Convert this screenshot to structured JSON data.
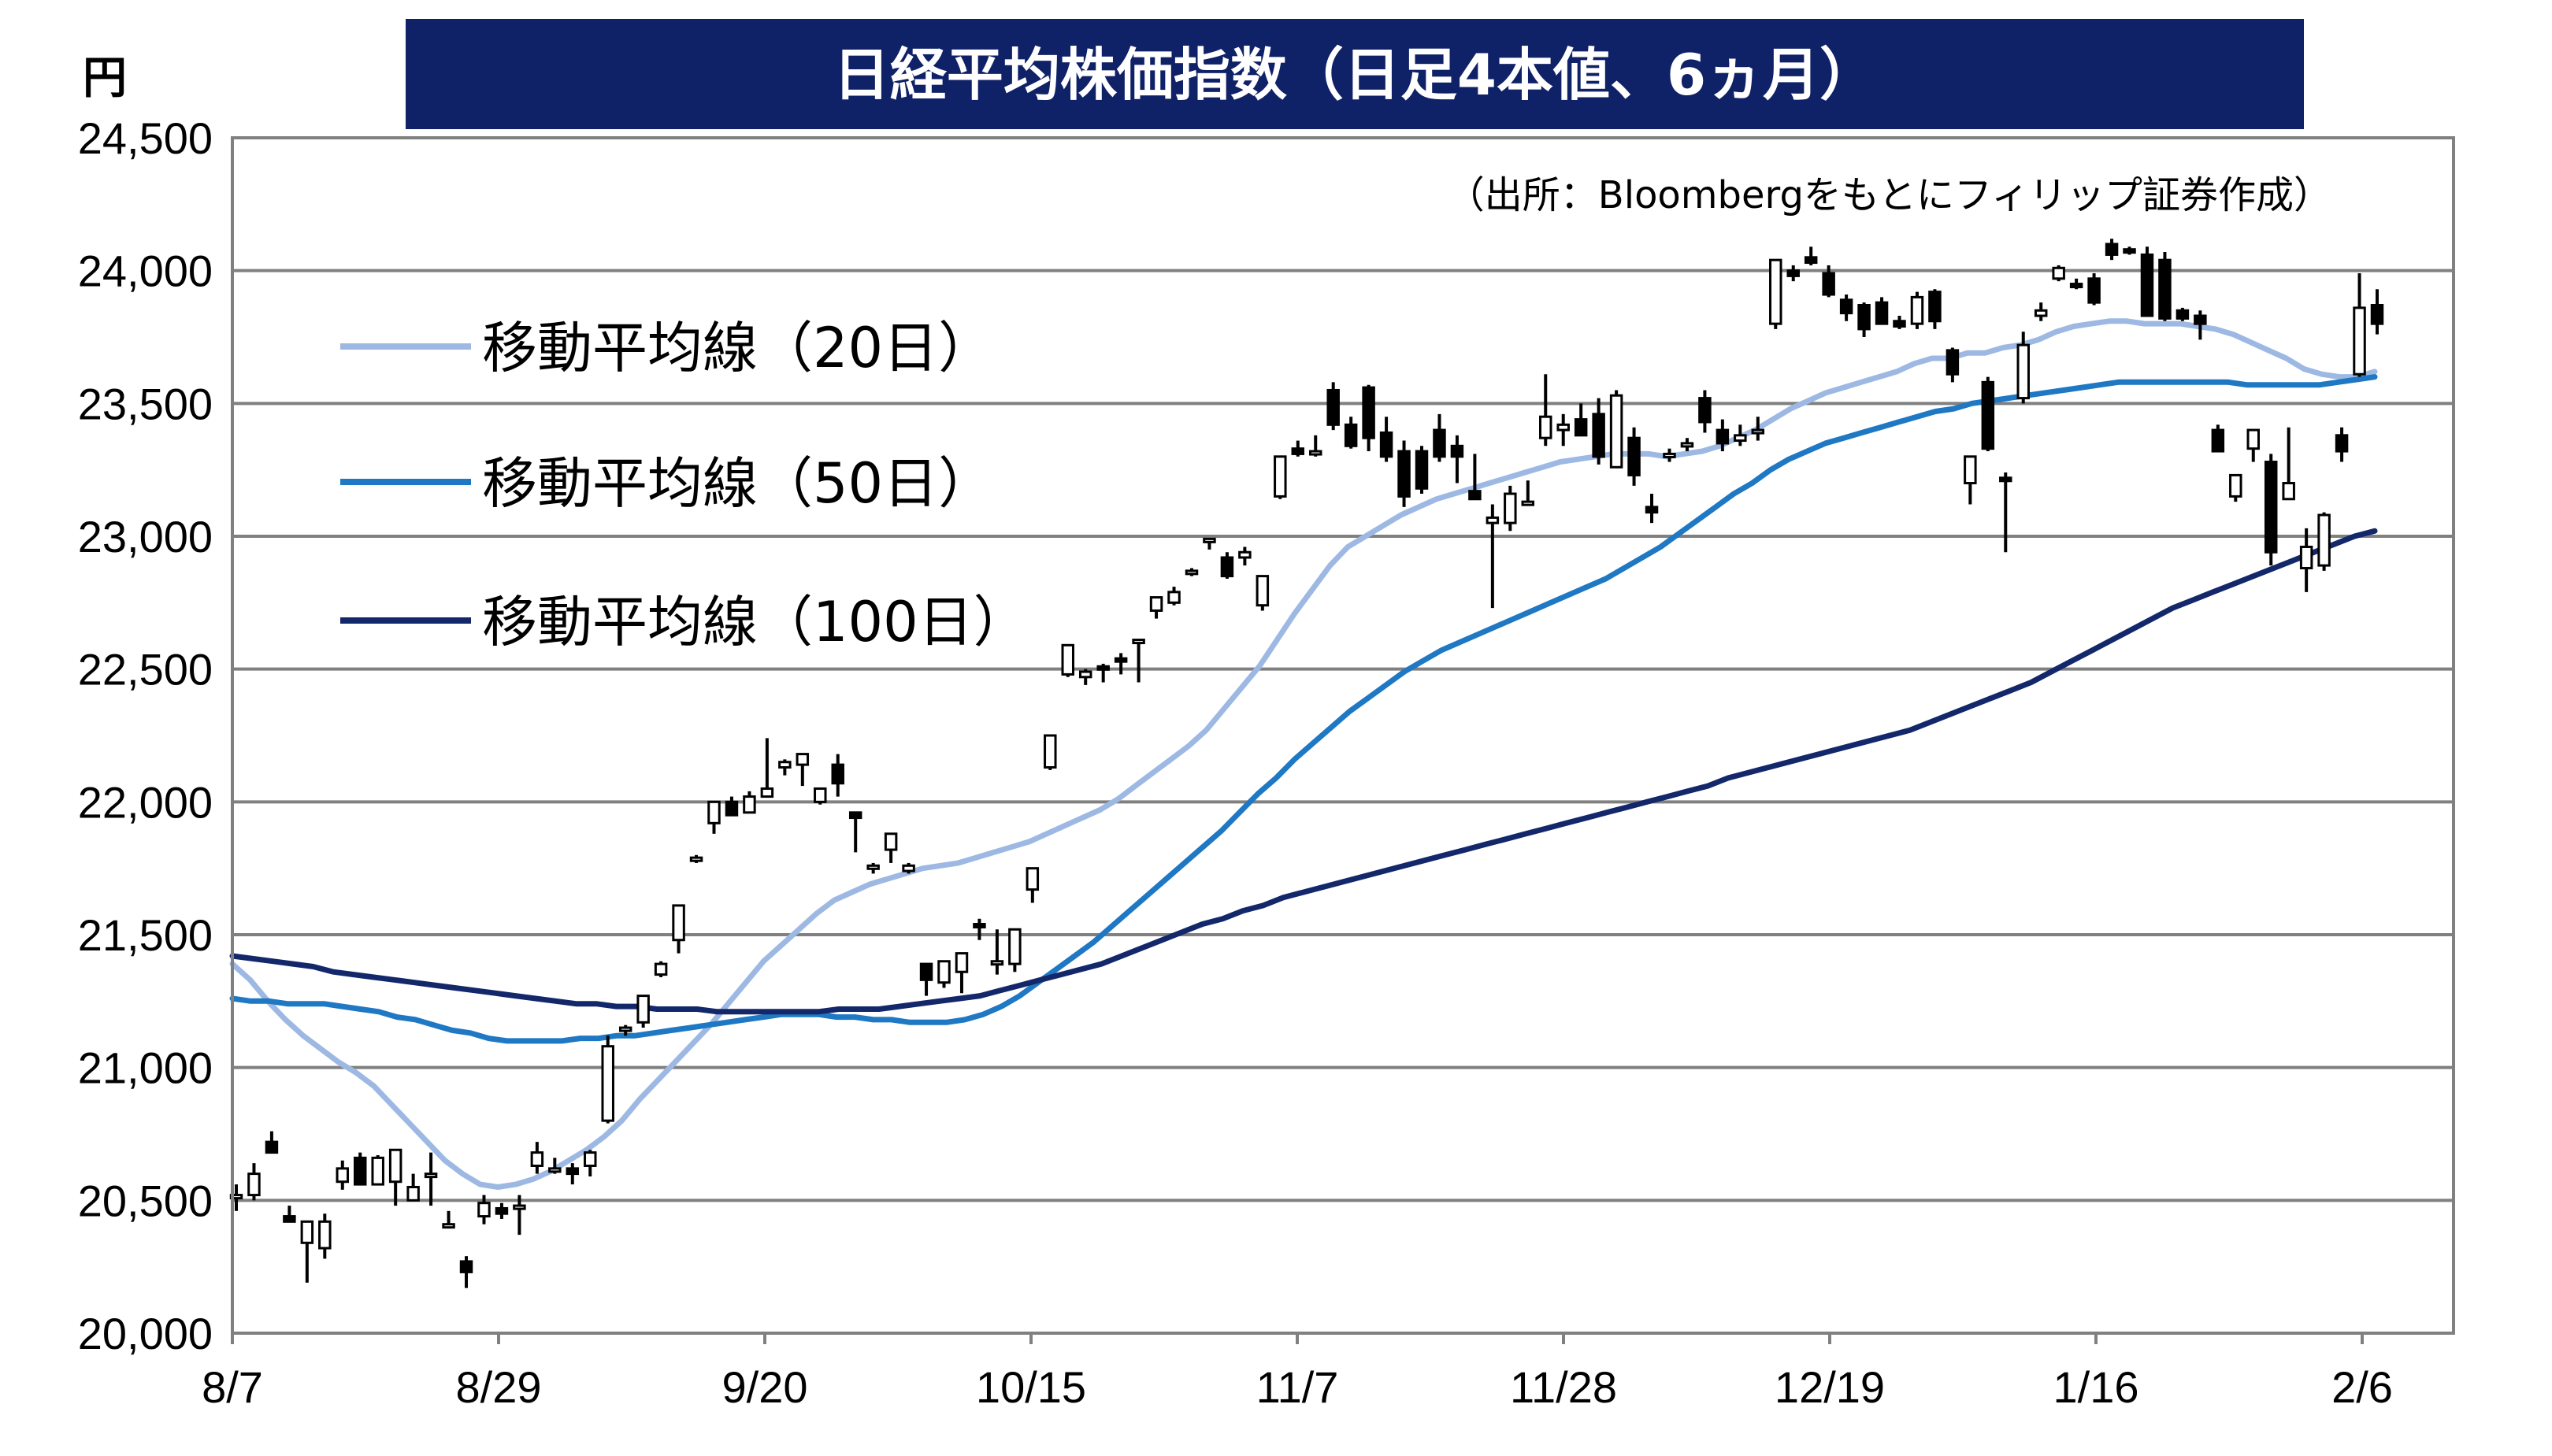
{
  "chart_data": {
    "type": "candlestick",
    "title": "日経平均株価指数（日足4本値、6ヵ月）",
    "source": "（出所：Bloombergをもとにフィリップ証券作成）",
    "ylabel": "円",
    "xlabel": "",
    "ylim": [
      20000,
      24500
    ],
    "yticks": [
      "20,000",
      "20,500",
      "21,000",
      "21,500",
      "22,000",
      "22,500",
      "23,000",
      "23,500",
      "24,000",
      "24,500"
    ],
    "xticks": [
      "8/7",
      "8/29",
      "9/20",
      "10/15",
      "11/7",
      "11/28",
      "12/19",
      "1/16",
      "2/6"
    ],
    "grid": true,
    "legend_position": "top-left",
    "colors": {
      "title_bg": "#0F2167",
      "ma20": "#9DB9E3",
      "ma50": "#1F78C3",
      "ma100": "#13276B",
      "grid": "#808080",
      "up_fill": "#ffffff",
      "down_fill": "#000000"
    },
    "series": [
      {
        "name": "移動平均線（20日）",
        "key": "ma20",
        "values": [
          21390,
          21330,
          21250,
          21180,
          21120,
          21070,
          21020,
          20980,
          20930,
          20860,
          20790,
          20720,
          20650,
          20600,
          20560,
          20550,
          20560,
          20580,
          20610,
          20650,
          20690,
          20740,
          20800,
          20880,
          20950,
          21020,
          21090,
          21160,
          21240,
          21320,
          21400,
          21460,
          21520,
          21580,
          21630,
          21660,
          21690,
          21710,
          21730,
          21750,
          21760,
          21770,
          21790,
          21810,
          21830,
          21850,
          21880,
          21910,
          21940,
          21970,
          22010,
          22060,
          22110,
          22160,
          22210,
          22270,
          22350,
          22430,
          22510,
          22610,
          22710,
          22800,
          22890,
          22960,
          23000,
          23040,
          23080,
          23110,
          23140,
          23160,
          23180,
          23200,
          23220,
          23240,
          23260,
          23280,
          23290,
          23300,
          23310,
          23310,
          23310,
          23300,
          23310,
          23320,
          23340,
          23370,
          23400,
          23440,
          23480,
          23510,
          23540,
          23560,
          23580,
          23600,
          23620,
          23650,
          23670,
          23670,
          23690,
          23690,
          23710,
          23720,
          23740,
          23770,
          23790,
          23800,
          23810,
          23810,
          23800,
          23800,
          23800,
          23790,
          23780,
          23760,
          23730,
          23700,
          23670,
          23630,
          23610,
          23600,
          23600,
          23620
        ]
      },
      {
        "name": "移動平均線（50日）",
        "key": "ma50",
        "values": [
          21260,
          21250,
          21250,
          21240,
          21240,
          21240,
          21230,
          21220,
          21210,
          21190,
          21180,
          21160,
          21140,
          21130,
          21110,
          21100,
          21100,
          21100,
          21100,
          21110,
          21110,
          21120,
          21120,
          21130,
          21140,
          21150,
          21160,
          21170,
          21180,
          21190,
          21200,
          21200,
          21200,
          21190,
          21190,
          21180,
          21180,
          21170,
          21170,
          21170,
          21180,
          21200,
          21230,
          21270,
          21320,
          21370,
          21420,
          21470,
          21530,
          21590,
          21650,
          21710,
          21770,
          21830,
          21890,
          21960,
          22030,
          22090,
          22160,
          22220,
          22280,
          22340,
          22390,
          22440,
          22490,
          22530,
          22570,
          22600,
          22630,
          22660,
          22690,
          22720,
          22750,
          22780,
          22810,
          22840,
          22880,
          22920,
          22960,
          23010,
          23060,
          23110,
          23160,
          23200,
          23250,
          23290,
          23320,
          23350,
          23370,
          23390,
          23410,
          23430,
          23450,
          23470,
          23480,
          23500,
          23510,
          23520,
          23530,
          23540,
          23550,
          23560,
          23570,
          23580,
          23580,
          23580,
          23580,
          23580,
          23580,
          23580,
          23570,
          23570,
          23570,
          23570,
          23570,
          23580,
          23590,
          23600
        ]
      },
      {
        "name": "移動平均線（100日）",
        "key": "ma100",
        "values": [
          21420,
          21410,
          21400,
          21390,
          21380,
          21360,
          21350,
          21340,
          21330,
          21320,
          21310,
          21300,
          21290,
          21280,
          21270,
          21260,
          21250,
          21240,
          21240,
          21230,
          21230,
          21220,
          21220,
          21220,
          21210,
          21210,
          21210,
          21210,
          21210,
          21210,
          21220,
          21220,
          21220,
          21230,
          21240,
          21250,
          21260,
          21270,
          21290,
          21310,
          21330,
          21350,
          21370,
          21390,
          21420,
          21450,
          21480,
          21510,
          21540,
          21560,
          21590,
          21610,
          21640,
          21660,
          21680,
          21700,
          21720,
          21740,
          21760,
          21780,
          21800,
          21820,
          21840,
          21860,
          21880,
          21900,
          21920,
          21940,
          21960,
          21980,
          22000,
          22020,
          22040,
          22060,
          22090,
          22110,
          22130,
          22150,
          22170,
          22190,
          22210,
          22230,
          22250,
          22270,
          22300,
          22330,
          22360,
          22390,
          22420,
          22450,
          22490,
          22530,
          22570,
          22610,
          22650,
          22690,
          22730,
          22760,
          22790,
          22820,
          22850,
          22880,
          22910,
          22940,
          22970,
          23000,
          23020
        ]
      },
      {
        "name": "日経平均株価",
        "key": "ohlc",
        "values": [
          [
            20520,
            20560,
            20460,
            20520
          ],
          [
            20520,
            20640,
            20500,
            20600
          ],
          [
            20720,
            20760,
            20700,
            20680
          ],
          [
            20440,
            20480,
            20420,
            20420
          ],
          [
            20340,
            20420,
            20190,
            20420
          ],
          [
            20320,
            20450,
            20280,
            20420
          ],
          [
            20570,
            20650,
            20540,
            20620
          ],
          [
            20660,
            20680,
            20560,
            20560
          ],
          [
            20560,
            20670,
            20560,
            20660
          ],
          [
            20570,
            20630,
            20480,
            20690
          ],
          [
            20500,
            20600,
            20500,
            20550
          ],
          [
            20600,
            20680,
            20480,
            20600
          ],
          [
            20410,
            20460,
            20420,
            20410
          ],
          [
            20270,
            20290,
            20170,
            20230
          ],
          [
            20440,
            20520,
            20410,
            20490
          ],
          [
            20470,
            20490,
            20430,
            20450
          ],
          [
            20480,
            20520,
            20370,
            20480
          ],
          [
            20630,
            20720,
            20600,
            20680
          ],
          [
            20610,
            20660,
            20600,
            20620
          ],
          [
            20620,
            20640,
            20560,
            20600
          ],
          [
            20630,
            20690,
            20590,
            20680
          ],
          [
            20800,
            21120,
            20790,
            21080
          ],
          [
            21140,
            21160,
            21120,
            21150
          ],
          [
            21170,
            21260,
            21150,
            21270
          ],
          [
            21350,
            21400,
            21340,
            21390
          ],
          [
            21480,
            21580,
            21430,
            21610
          ],
          [
            21780,
            21800,
            21770,
            21790
          ],
          [
            21920,
            22000,
            21880,
            22000
          ],
          [
            22000,
            22020,
            21950,
            21950
          ],
          [
            21960,
            22040,
            21960,
            22020
          ],
          [
            22020,
            22240,
            22050,
            22050
          ],
          [
            22130,
            22160,
            22100,
            22150
          ],
          [
            22140,
            22160,
            22060,
            22180
          ],
          [
            22000,
            22040,
            21990,
            22050
          ],
          [
            22140,
            22180,
            22020,
            22070
          ],
          [
            21960,
            21890,
            21810,
            21940
          ],
          [
            21760,
            21770,
            21730,
            21760
          ],
          [
            21820,
            21840,
            21770,
            21880
          ],
          [
            21740,
            21770,
            21730,
            21760
          ],
          [
            21390,
            21380,
            21270,
            21330
          ],
          [
            21320,
            21390,
            21300,
            21400
          ],
          [
            21360,
            21400,
            21280,
            21430
          ],
          [
            21540,
            21560,
            21480,
            21530
          ],
          [
            21400,
            21520,
            21350,
            21400
          ],
          [
            21390,
            21470,
            21360,
            21520
          ],
          [
            21670,
            21740,
            21620,
            21750
          ],
          [
            22130,
            22140,
            22120,
            22250
          ],
          [
            22480,
            22500,
            22470,
            22590
          ],
          [
            22470,
            22500,
            22440,
            22490
          ],
          [
            22510,
            22520,
            22450,
            22500
          ],
          [
            22540,
            22560,
            22480,
            22530
          ],
          [
            22600,
            22600,
            22450,
            22610
          ],
          [
            22720,
            22740,
            22690,
            22770
          ],
          [
            22750,
            22810,
            22740,
            22790
          ],
          [
            22860,
            22880,
            22850,
            22870
          ],
          [
            22980,
            22990,
            22950,
            22990
          ],
          [
            22920,
            22940,
            22840,
            22850
          ],
          [
            22920,
            22960,
            22890,
            22940
          ],
          [
            22740,
            22810,
            22720,
            22850
          ],
          [
            23150,
            23250,
            23140,
            23300
          ],
          [
            23330,
            23360,
            23300,
            23310
          ],
          [
            23320,
            23380,
            23300,
            23320
          ],
          [
            23550,
            23580,
            23400,
            23420
          ],
          [
            23420,
            23450,
            23330,
            23340
          ],
          [
            23560,
            23570,
            23320,
            23370
          ],
          [
            23390,
            23450,
            23280,
            23300
          ],
          [
            23320,
            23360,
            23110,
            23150
          ],
          [
            23320,
            23340,
            23160,
            23180
          ],
          [
            23400,
            23460,
            23280,
            23300
          ],
          [
            23340,
            23380,
            23200,
            23300
          ],
          [
            23170,
            23310,
            23140,
            23140
          ],
          [
            23050,
            23120,
            22730,
            23070
          ],
          [
            23050,
            23190,
            23020,
            23160
          ],
          [
            23130,
            23210,
            23200,
            23130
          ],
          [
            23370,
            23610,
            23340,
            23450
          ],
          [
            23400,
            23460,
            23340,
            23420
          ],
          [
            23440,
            23500,
            23380,
            23380
          ],
          [
            23460,
            23520,
            23270,
            23300
          ],
          [
            23260,
            23550,
            23260,
            23530
          ],
          [
            23370,
            23410,
            23190,
            23230
          ],
          [
            23110,
            23160,
            23050,
            23090
          ],
          [
            23300,
            23330,
            23280,
            23310
          ],
          [
            23340,
            23370,
            23320,
            23350
          ],
          [
            23520,
            23550,
            23390,
            23430
          ],
          [
            23400,
            23440,
            23320,
            23350
          ],
          [
            23360,
            23420,
            23340,
            23380
          ],
          [
            23400,
            23450,
            23360,
            23400
          ],
          [
            23800,
            24040,
            23780,
            24040
          ],
          [
            24000,
            24020,
            23960,
            23980
          ],
          [
            24050,
            24090,
            24020,
            24030
          ],
          [
            23990,
            24020,
            23900,
            23910
          ],
          [
            23890,
            23910,
            23810,
            23840
          ],
          [
            23870,
            23880,
            23750,
            23780
          ],
          [
            23880,
            23900,
            23810,
            23800
          ],
          [
            23810,
            23830,
            23780,
            23790
          ],
          [
            23800,
            23920,
            23780,
            23900
          ],
          [
            23920,
            23930,
            23780,
            23810
          ],
          [
            23700,
            23710,
            23580,
            23610
          ],
          [
            23200,
            23260,
            23120,
            23300
          ],
          [
            23580,
            23600,
            23320,
            23330
          ],
          [
            23220,
            23240,
            22940,
            23210
          ],
          [
            23520,
            23770,
            23500,
            23720
          ],
          [
            23830,
            23880,
            23810,
            23850
          ],
          [
            23970,
            24020,
            23960,
            24010
          ],
          [
            23950,
            23970,
            23930,
            23940
          ],
          [
            23970,
            23990,
            23870,
            23880
          ],
          [
            24100,
            24120,
            24040,
            24060
          ],
          [
            24080,
            24090,
            24060,
            24070
          ],
          [
            24060,
            24090,
            23870,
            23830
          ],
          [
            24040,
            24070,
            23810,
            23820
          ],
          [
            23850,
            23860,
            23810,
            23820
          ],
          [
            23830,
            23850,
            23740,
            23800
          ],
          [
            23400,
            23420,
            23330,
            23320
          ],
          [
            23150,
            23210,
            23130,
            23230
          ],
          [
            23330,
            23400,
            23280,
            23400
          ],
          [
            23280,
            23310,
            22890,
            22940
          ],
          [
            23140,
            23410,
            23140,
            23200
          ],
          [
            22880,
            23030,
            22790,
            22960
          ],
          [
            22890,
            23090,
            22870,
            23080
          ],
          [
            23380,
            23410,
            23280,
            23320
          ],
          [
            23610,
            23990,
            23600,
            23860
          ],
          [
            23870,
            23930,
            23760,
            23800
          ]
        ]
      }
    ]
  }
}
